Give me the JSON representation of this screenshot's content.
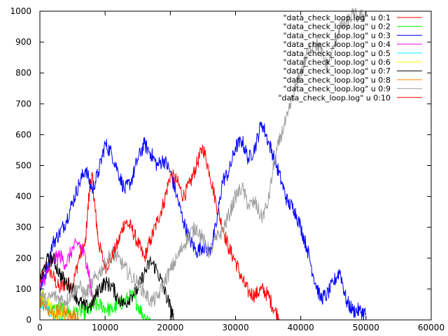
{
  "chart_data": {
    "type": "line",
    "xlim": [
      0,
      60000
    ],
    "ylim": [
      0,
      1000
    ],
    "x_ticks": [
      0,
      10000,
      20000,
      30000,
      40000,
      50000,
      60000
    ],
    "y_ticks": [
      0,
      100,
      200,
      300,
      400,
      500,
      600,
      700,
      800,
      900,
      1000
    ],
    "x_tick_labels": [
      "0",
      "10000",
      "20000",
      "30000",
      "40000",
      "50000",
      "60000"
    ],
    "y_tick_labels": [
      "0",
      "100",
      "200",
      "300",
      "400",
      "500",
      "600",
      "700",
      "800",
      "900",
      "1000"
    ],
    "grid": false,
    "legend_position": "top-right",
    "series": [
      {
        "name": "\"data_check_loop.log\" u 0:1",
        "color": "#ff0000",
        "points": [
          [
            0,
            120
          ],
          [
            1000,
            180
          ],
          [
            2000,
            140
          ],
          [
            3000,
            100
          ],
          [
            4000,
            120
          ],
          [
            5000,
            110
          ],
          [
            6000,
            200
          ],
          [
            7000,
            250
          ],
          [
            7500,
            400
          ],
          [
            8000,
            470
          ],
          [
            8500,
            350
          ],
          [
            9000,
            250
          ],
          [
            10000,
            170
          ],
          [
            11000,
            200
          ],
          [
            12000,
            250
          ],
          [
            13000,
            320
          ],
          [
            14000,
            300
          ],
          [
            15000,
            250
          ],
          [
            16000,
            200
          ],
          [
            17000,
            260
          ],
          [
            18000,
            320
          ],
          [
            19000,
            380
          ],
          [
            20000,
            470
          ],
          [
            21000,
            450
          ],
          [
            22000,
            400
          ],
          [
            23000,
            440
          ],
          [
            24000,
            500
          ],
          [
            25000,
            560
          ],
          [
            26000,
            480
          ],
          [
            27000,
            380
          ],
          [
            28000,
            300
          ],
          [
            29000,
            230
          ],
          [
            30000,
            190
          ],
          [
            31000,
            130
          ],
          [
            32000,
            90
          ],
          [
            33000,
            80
          ],
          [
            34000,
            100
          ],
          [
            35000,
            80
          ],
          [
            36000,
            30
          ],
          [
            37000,
            0
          ]
        ]
      },
      {
        "name": "\"data_check_loop.log\" u 0:2",
        "color": "#00ff00",
        "points": [
          [
            0,
            80
          ],
          [
            1000,
            50
          ],
          [
            2000,
            30
          ],
          [
            3000,
            40
          ],
          [
            4000,
            30
          ],
          [
            5000,
            20
          ],
          [
            6000,
            30
          ],
          [
            7000,
            20
          ],
          [
            8000,
            40
          ],
          [
            9000,
            50
          ],
          [
            10000,
            40
          ],
          [
            11000,
            30
          ],
          [
            12000,
            50
          ],
          [
            13000,
            60
          ],
          [
            14000,
            80
          ],
          [
            15000,
            50
          ],
          [
            16000,
            10
          ],
          [
            17000,
            0
          ]
        ]
      },
      {
        "name": "\"data_check_loop.log\" u 0:3",
        "color": "#0000ff",
        "points": [
          [
            0,
            100
          ],
          [
            1000,
            160
          ],
          [
            2000,
            250
          ],
          [
            3000,
            280
          ],
          [
            4000,
            320
          ],
          [
            5000,
            380
          ],
          [
            6000,
            440
          ],
          [
            7000,
            490
          ],
          [
            8000,
            420
          ],
          [
            9000,
            480
          ],
          [
            10000,
            570
          ],
          [
            11000,
            540
          ],
          [
            12000,
            480
          ],
          [
            13000,
            420
          ],
          [
            14000,
            450
          ],
          [
            15000,
            520
          ],
          [
            16000,
            570
          ],
          [
            17000,
            540
          ],
          [
            18000,
            500
          ],
          [
            19000,
            520
          ],
          [
            20000,
            480
          ],
          [
            21000,
            400
          ],
          [
            22000,
            320
          ],
          [
            23000,
            260
          ],
          [
            24000,
            220
          ],
          [
            25000,
            240
          ],
          [
            26000,
            220
          ],
          [
            27000,
            300
          ],
          [
            28000,
            450
          ],
          [
            29000,
            480
          ],
          [
            30000,
            560
          ],
          [
            31000,
            580
          ],
          [
            32000,
            520
          ],
          [
            33000,
            560
          ],
          [
            34000,
            640
          ],
          [
            35000,
            580
          ],
          [
            36000,
            520
          ],
          [
            37000,
            450
          ],
          [
            38000,
            380
          ],
          [
            39000,
            360
          ],
          [
            40000,
            300
          ],
          [
            41000,
            230
          ],
          [
            42000,
            140
          ],
          [
            43000,
            70
          ],
          [
            44000,
            80
          ],
          [
            45000,
            120
          ],
          [
            46000,
            160
          ],
          [
            47000,
            60
          ],
          [
            48000,
            30
          ],
          [
            49000,
            30
          ],
          [
            50000,
            20
          ]
        ]
      },
      {
        "name": "\"data_check_loop.log\" u 0:4",
        "color": "#ff00ff",
        "points": [
          [
            0,
            100
          ],
          [
            1000,
            150
          ],
          [
            2000,
            190
          ],
          [
            3000,
            210
          ],
          [
            4000,
            180
          ],
          [
            5000,
            230
          ],
          [
            6000,
            250
          ],
          [
            7000,
            200
          ],
          [
            7500,
            150
          ],
          [
            8000,
            80
          ]
        ]
      },
      {
        "name": "\"data_check_loop.log\" u 0:5",
        "color": "#00ffff",
        "points": [
          [
            0,
            60
          ],
          [
            1000,
            40
          ],
          [
            2000,
            20
          ],
          [
            3000,
            10
          ],
          [
            3500,
            0
          ]
        ]
      },
      {
        "name": "\"data_check_loop.log\" u 0:6",
        "color": "#ffff00",
        "points": [
          [
            0,
            90
          ],
          [
            1000,
            60
          ],
          [
            2000,
            30
          ],
          [
            3000,
            10
          ],
          [
            4000,
            0
          ]
        ]
      },
      {
        "name": "\"data_check_loop.log\" u 0:7",
        "color": "#000000",
        "points": [
          [
            0,
            120
          ],
          [
            1000,
            190
          ],
          [
            2000,
            200
          ],
          [
            3000,
            150
          ],
          [
            4000,
            120
          ],
          [
            5000,
            100
          ],
          [
            6000,
            60
          ],
          [
            7000,
            40
          ],
          [
            8000,
            50
          ],
          [
            9000,
            100
          ],
          [
            10000,
            120
          ],
          [
            11000,
            110
          ],
          [
            12000,
            70
          ],
          [
            13000,
            50
          ],
          [
            14000,
            80
          ],
          [
            15000,
            100
          ],
          [
            16000,
            150
          ],
          [
            17000,
            190
          ],
          [
            18000,
            160
          ],
          [
            19000,
            100
          ],
          [
            20000,
            40
          ],
          [
            20500,
            0
          ]
        ]
      },
      {
        "name": "\"data_check_loop.log\" u 0:8",
        "color": "#ff8000",
        "points": [
          [
            0,
            70
          ],
          [
            1000,
            40
          ],
          [
            2000,
            20
          ],
          [
            3000,
            30
          ],
          [
            4000,
            20
          ],
          [
            5000,
            10
          ],
          [
            6000,
            0
          ]
        ]
      },
      {
        "name": "\"data_check_loop.log\" u 0:9",
        "color": "#a0a0a0",
        "points": [
          [
            0,
            90
          ],
          [
            1000,
            60
          ],
          [
            2000,
            80
          ],
          [
            3000,
            70
          ],
          [
            4000,
            60
          ],
          [
            5000,
            90
          ],
          [
            6000,
            110
          ],
          [
            7000,
            80
          ],
          [
            8000,
            120
          ],
          [
            9000,
            150
          ],
          [
            10000,
            180
          ],
          [
            11000,
            220
          ],
          [
            12000,
            200
          ],
          [
            13000,
            170
          ],
          [
            14000,
            140
          ],
          [
            15000,
            120
          ],
          [
            16000,
            90
          ],
          [
            17000,
            60
          ],
          [
            18000,
            70
          ],
          [
            19000,
            120
          ],
          [
            20000,
            160
          ],
          [
            21000,
            200
          ],
          [
            22000,
            240
          ],
          [
            23000,
            280
          ],
          [
            24000,
            300
          ],
          [
            25000,
            260
          ],
          [
            26000,
            220
          ],
          [
            27000,
            260
          ],
          [
            28000,
            290
          ],
          [
            29000,
            340
          ],
          [
            30000,
            400
          ],
          [
            31000,
            430
          ],
          [
            32000,
            370
          ],
          [
            33000,
            380
          ],
          [
            34000,
            330
          ],
          [
            35000,
            380
          ],
          [
            36000,
            520
          ],
          [
            37000,
            600
          ],
          [
            38000,
            660
          ],
          [
            39000,
            740
          ],
          [
            40000,
            800
          ],
          [
            41000,
            860
          ],
          [
            42000,
            900
          ],
          [
            43000,
            880
          ],
          [
            44000,
            820
          ],
          [
            45000,
            880
          ],
          [
            46000,
            950
          ],
          [
            47000,
            960
          ],
          [
            48000,
            990
          ],
          [
            49000,
            980
          ],
          [
            50000,
            990
          ]
        ]
      },
      {
        "name": "\"data_check_loop.log\" u 0:10",
        "color": "#ff0000",
        "points": []
      }
    ]
  }
}
